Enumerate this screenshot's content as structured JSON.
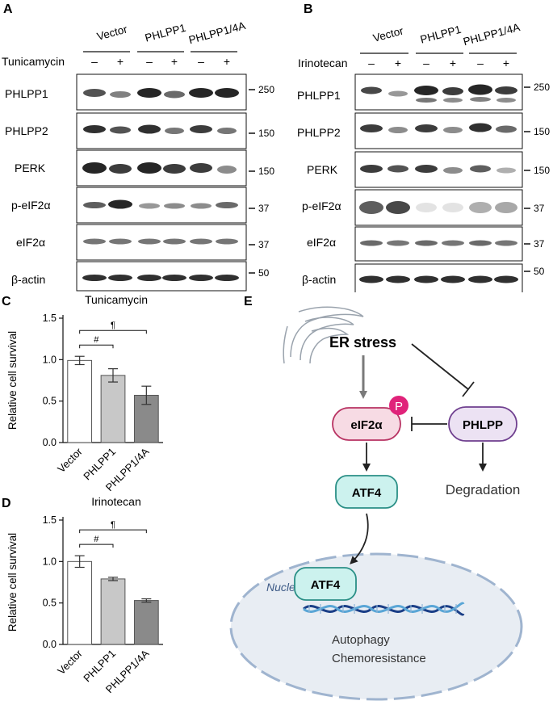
{
  "panel_a": {
    "letter": "A",
    "groups": [
      "Vector",
      "PHLPP1",
      "PHLPP1/4A"
    ],
    "treatment": "Tunicamycin",
    "signs": [
      "–",
      "+",
      "–",
      "+",
      "–",
      "+"
    ],
    "blots": [
      {
        "label": "PHLPP1",
        "mw": "250"
      },
      {
        "label": "PHLPP2",
        "mw": "150"
      },
      {
        "label": "PERK",
        "mw": "150"
      },
      {
        "label": "p-eIF2α",
        "mw": "37"
      },
      {
        "label": "eIF2α",
        "mw": "37"
      },
      {
        "label": "β-actin",
        "mw": "50"
      }
    ]
  },
  "panel_b": {
    "letter": "B",
    "groups": [
      "Vector",
      "PHLPP1",
      "PHLPP1/4A"
    ],
    "treatment": "Irinotecan",
    "signs": [
      "–",
      "+",
      "–",
      "+",
      "–",
      "+"
    ],
    "blots": [
      {
        "label": "PHLPP1",
        "mw": "250"
      },
      {
        "label": "PHLPP2",
        "mw": "150"
      },
      {
        "label": "PERK",
        "mw": "150"
      },
      {
        "label": "p-eIF2α",
        "mw": "37"
      },
      {
        "label": "eIF2α",
        "mw": "37"
      },
      {
        "label": "β-actin",
        "mw": "50"
      }
    ]
  },
  "chart_data": [
    {
      "panel": "C",
      "type": "bar",
      "title": "Tunicamycin",
      "ylabel": "Relative cell survival",
      "xlabel": "",
      "categories": [
        "Vector",
        "PHLPP1",
        "PHLPP1/4A"
      ],
      "values": [
        0.99,
        0.81,
        0.57
      ],
      "errors": [
        0.05,
        0.08,
        0.11
      ],
      "bar_colors": [
        "#ffffff",
        "#c8c8c8",
        "#8a8a8a"
      ],
      "ylim": [
        0,
        1.5
      ],
      "yticks": [
        "0.0",
        "0.5",
        "1.0",
        "1.5"
      ],
      "annotations": [
        {
          "symbol": "#",
          "from": 0,
          "to": 1
        },
        {
          "symbol": "¶",
          "from": 0,
          "to": 2
        }
      ]
    },
    {
      "panel": "D",
      "type": "bar",
      "title": "Irinotecan",
      "ylabel": "Relative cell survival",
      "xlabel": "",
      "categories": [
        "Vector",
        "PHLPP1",
        "PHLPP1/4A"
      ],
      "values": [
        1.0,
        0.79,
        0.53
      ],
      "errors": [
        0.07,
        0.02,
        0.02
      ],
      "bar_colors": [
        "#ffffff",
        "#c8c8c8",
        "#8a8a8a"
      ],
      "ylim": [
        0,
        1.5
      ],
      "yticks": [
        "0.0",
        "0.5",
        "1.0",
        "1.5"
      ],
      "annotations": [
        {
          "symbol": "#",
          "from": 0,
          "to": 1
        },
        {
          "symbol": "¶",
          "from": 0,
          "to": 2
        }
      ]
    }
  ],
  "panel_e": {
    "letter": "E",
    "er_stress": "ER stress",
    "eif2a": "eIF2α",
    "phospho": "P",
    "phlpp": "PHLPP",
    "degradation": "Degradation",
    "atf4": "ATF4",
    "atf4_nucleus": "ATF4",
    "nucleus": "Nucleus",
    "outcome1": "Autophagy",
    "outcome2": "Chemoresistance",
    "colors": {
      "eif2a_fill": "#f7dbe4",
      "eif2a_stroke": "#b83262",
      "phlpp_fill": "#ece2f3",
      "phlpp_stroke": "#6f3f8f",
      "atf4_fill": "#ccf2ee",
      "atf4_stroke": "#2a8f86",
      "phospho": "#e0237a",
      "nucleus_fill": "#e8edf3",
      "nucleus_stroke": "#9fb4cf",
      "dna1": "#1b3f87",
      "dna2": "#5aa6d6"
    }
  }
}
